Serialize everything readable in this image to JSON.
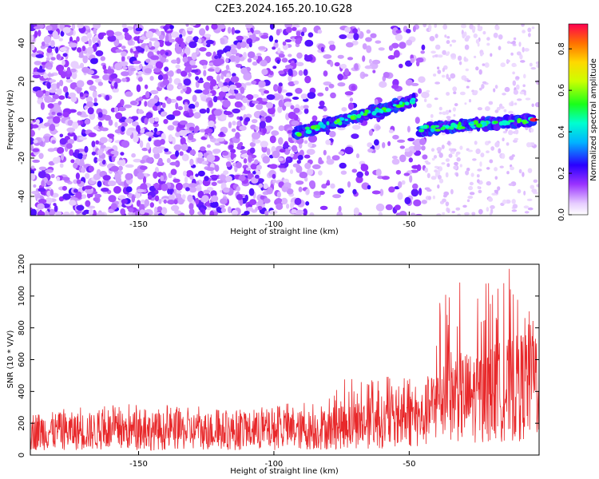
{
  "title": "C2E3.2024.165.20.10.G28",
  "colors": {
    "snr_line": "#e8282a",
    "heatmap_low": "#d9b8ff",
    "heatmap_mid": "#8000ff",
    "heatmap_high": "#ff1a1a"
  },
  "chart_data": [
    {
      "type": "heatmap",
      "name": "spectrogram",
      "xlabel": "Height of straight line (km)",
      "ylabel": "Frequency (Hz)",
      "xlim": [
        -190,
        -2
      ],
      "ylim": [
        -50,
        50
      ],
      "xticks": [
        -150,
        -100,
        -50
      ],
      "xtick_labels": [
        "-150",
        "-100",
        "-50"
      ],
      "yticks": [
        -40,
        -20,
        0,
        20,
        40
      ],
      "ytick_labels": [
        "-40",
        "-20",
        "0",
        "20",
        "40"
      ],
      "noise_region_x": [
        -190,
        -44
      ],
      "ridge_segments": [
        {
          "x_start": -92,
          "x_end": -48,
          "freq_start": -7,
          "freq_end": 10
        },
        {
          "x_start": -46,
          "x_end": -4,
          "freq_start": -5,
          "freq_end": 0
        }
      ],
      "peak": {
        "x": -4,
        "freq": 0,
        "value": 0.9
      },
      "colorbar": {
        "label": "Normalized spectral amplitude",
        "range": [
          0.0,
          0.92
        ],
        "ticks": [
          0.0,
          0.2,
          0.4,
          0.6,
          0.8
        ],
        "tick_labels": [
          "0.0",
          "0.2",
          "0.4",
          "0.6",
          "0.8"
        ]
      }
    },
    {
      "type": "line",
      "name": "snr",
      "xlabel": "Height of straight line (km)",
      "ylabel": "SNR (10 * V/V)",
      "xlim": [
        -190,
        -2
      ],
      "ylim": [
        0,
        1200
      ],
      "xticks": [
        -150,
        -100,
        -50
      ],
      "xtick_labels": [
        "-150",
        "-100",
        "-50"
      ],
      "yticks": [
        0,
        200,
        400,
        600,
        800,
        1000,
        1200
      ],
      "ytick_labels": [
        "0",
        "200",
        "400",
        "600",
        "800",
        "1000",
        "1200"
      ],
      "envelope": [
        {
          "x": -190,
          "mean": 150,
          "max": 330
        },
        {
          "x": -150,
          "mean": 150,
          "max": 320
        },
        {
          "x": -110,
          "mean": 150,
          "max": 300
        },
        {
          "x": -80,
          "mean": 160,
          "max": 350
        },
        {
          "x": -75,
          "mean": 190,
          "max": 480
        },
        {
          "x": -50,
          "mean": 220,
          "max": 520
        },
        {
          "x": -45,
          "mean": 230,
          "max": 470
        },
        {
          "x": -37,
          "mean": 380,
          "max": 1120
        },
        {
          "x": -27,
          "mean": 360,
          "max": 1060
        },
        {
          "x": -10,
          "mean": 420,
          "max": 1200
        },
        {
          "x": -2,
          "mean": 500,
          "max": 760
        }
      ]
    }
  ]
}
